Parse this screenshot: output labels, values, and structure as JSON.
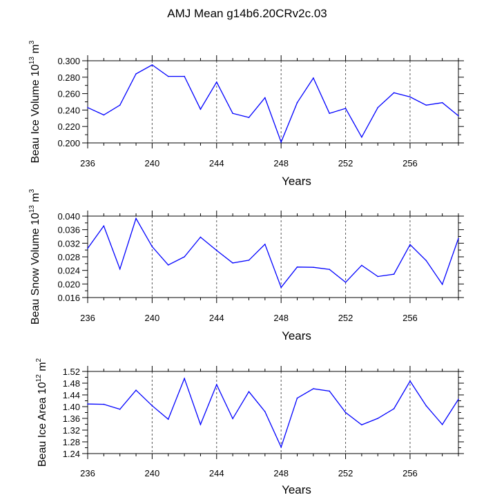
{
  "title": "AMJ Mean g14b6.20CRv2c.03",
  "line_color": "#0000ff",
  "chart_data": [
    {
      "type": "line",
      "xlabel": "Years",
      "ylabel_parts": [
        "Beau Ice Volume 10",
        "13",
        " m",
        "3"
      ],
      "xlim": [
        236,
        259
      ],
      "ylim": [
        0.2,
        0.3
      ],
      "xticks": [
        236,
        240,
        244,
        248,
        252,
        256
      ],
      "xtick_labels": [
        "236",
        "240",
        "244",
        "248",
        "252",
        "256"
      ],
      "yticks": [
        0.2,
        0.22,
        0.24,
        0.26,
        0.28,
        0.3
      ],
      "ytick_labels": [
        "0.200",
        "0.220",
        "0.240",
        "0.260",
        "0.280",
        "0.300"
      ],
      "grid": "dashed vertical at labeled x ticks",
      "x": [
        236,
        237,
        238,
        239,
        240,
        241,
        242,
        243,
        244,
        245,
        246,
        247,
        248,
        249,
        250,
        251,
        252,
        253,
        254,
        255,
        256,
        257,
        258,
        259
      ],
      "y": [
        0.243,
        0.234,
        0.246,
        0.284,
        0.295,
        0.281,
        0.281,
        0.241,
        0.274,
        0.236,
        0.231,
        0.255,
        0.201,
        0.249,
        0.279,
        0.236,
        0.242,
        0.207,
        0.243,
        0.261,
        0.256,
        0.246,
        0.249,
        0.233
      ]
    },
    {
      "type": "line",
      "xlabel": "Years",
      "ylabel_parts": [
        "Beau Snow Volume 10",
        "13",
        " m",
        "3"
      ],
      "xlim": [
        236,
        259
      ],
      "ylim": [
        0.016,
        0.04
      ],
      "xticks": [
        236,
        240,
        244,
        248,
        252,
        256
      ],
      "xtick_labels": [
        "236",
        "240",
        "244",
        "248",
        "252",
        "256"
      ],
      "yticks": [
        0.016,
        0.02,
        0.024,
        0.028,
        0.032,
        0.036,
        0.04
      ],
      "ytick_labels": [
        "0.016",
        "0.020",
        "0.024",
        "0.028",
        "0.032",
        "0.036",
        "0.040"
      ],
      "grid": "dashed vertical at labeled x ticks",
      "x": [
        236,
        237,
        238,
        239,
        240,
        241,
        242,
        243,
        244,
        245,
        246,
        247,
        248,
        249,
        250,
        251,
        252,
        253,
        254,
        255,
        256,
        257,
        258,
        259
      ],
      "y": [
        0.0305,
        0.0371,
        0.0244,
        0.0393,
        0.031,
        0.0256,
        0.028,
        0.0338,
        0.0299,
        0.0262,
        0.027,
        0.0317,
        0.019,
        0.025,
        0.0249,
        0.0243,
        0.0205,
        0.0255,
        0.0222,
        0.0229,
        0.0316,
        0.0269,
        0.0199,
        0.0334
      ]
    },
    {
      "type": "line",
      "xlabel": "Years",
      "ylabel_parts": [
        "Beau Ice Area 10",
        "12",
        " m",
        "2"
      ],
      "xlim": [
        236,
        259
      ],
      "ylim": [
        1.24,
        1.52
      ],
      "xticks": [
        236,
        240,
        244,
        248,
        252,
        256
      ],
      "xtick_labels": [
        "236",
        "240",
        "244",
        "248",
        "252",
        "256"
      ],
      "yticks": [
        1.24,
        1.28,
        1.32,
        1.36,
        1.4,
        1.44,
        1.48,
        1.52
      ],
      "ytick_labels": [
        "1.24",
        "1.28",
        "1.32",
        "1.36",
        "1.40",
        "1.44",
        "1.48",
        "1.52"
      ],
      "grid": "dashed vertical at labeled x ticks",
      "x": [
        236,
        237,
        238,
        239,
        240,
        241,
        242,
        243,
        244,
        245,
        246,
        247,
        248,
        249,
        250,
        251,
        252,
        253,
        254,
        255,
        256,
        257,
        258,
        259
      ],
      "y": [
        1.409,
        1.408,
        1.391,
        1.456,
        1.403,
        1.357,
        1.496,
        1.339,
        1.475,
        1.359,
        1.451,
        1.383,
        1.262,
        1.429,
        1.461,
        1.453,
        1.38,
        1.338,
        1.36,
        1.393,
        1.487,
        1.403,
        1.339,
        1.425
      ]
    }
  ]
}
